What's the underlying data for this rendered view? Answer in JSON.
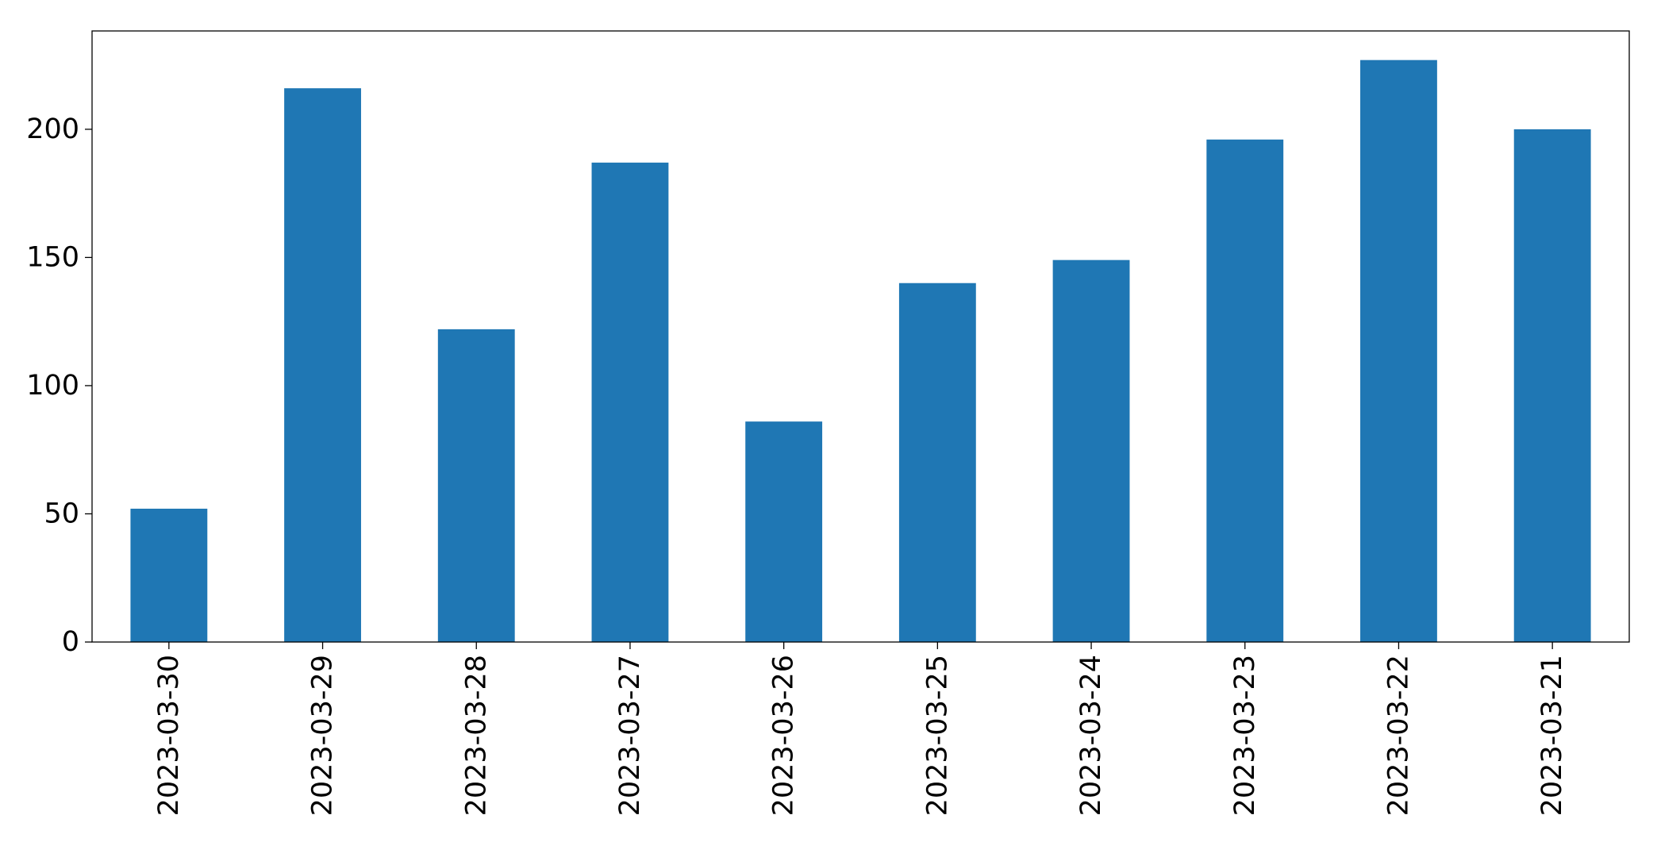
{
  "chart_data": {
    "type": "bar",
    "categories": [
      "2023-03-30",
      "2023-03-29",
      "2023-03-28",
      "2023-03-27",
      "2023-03-26",
      "2023-03-25",
      "2023-03-24",
      "2023-03-23",
      "2023-03-22",
      "2023-03-21"
    ],
    "values": [
      52,
      216,
      122,
      187,
      86,
      140,
      149,
      196,
      227,
      200
    ],
    "color": "#1f77b4",
    "ylim": [
      0,
      238.35
    ],
    "yticks": [
      0,
      50,
      100,
      150,
      200
    ],
    "grid": false
  }
}
